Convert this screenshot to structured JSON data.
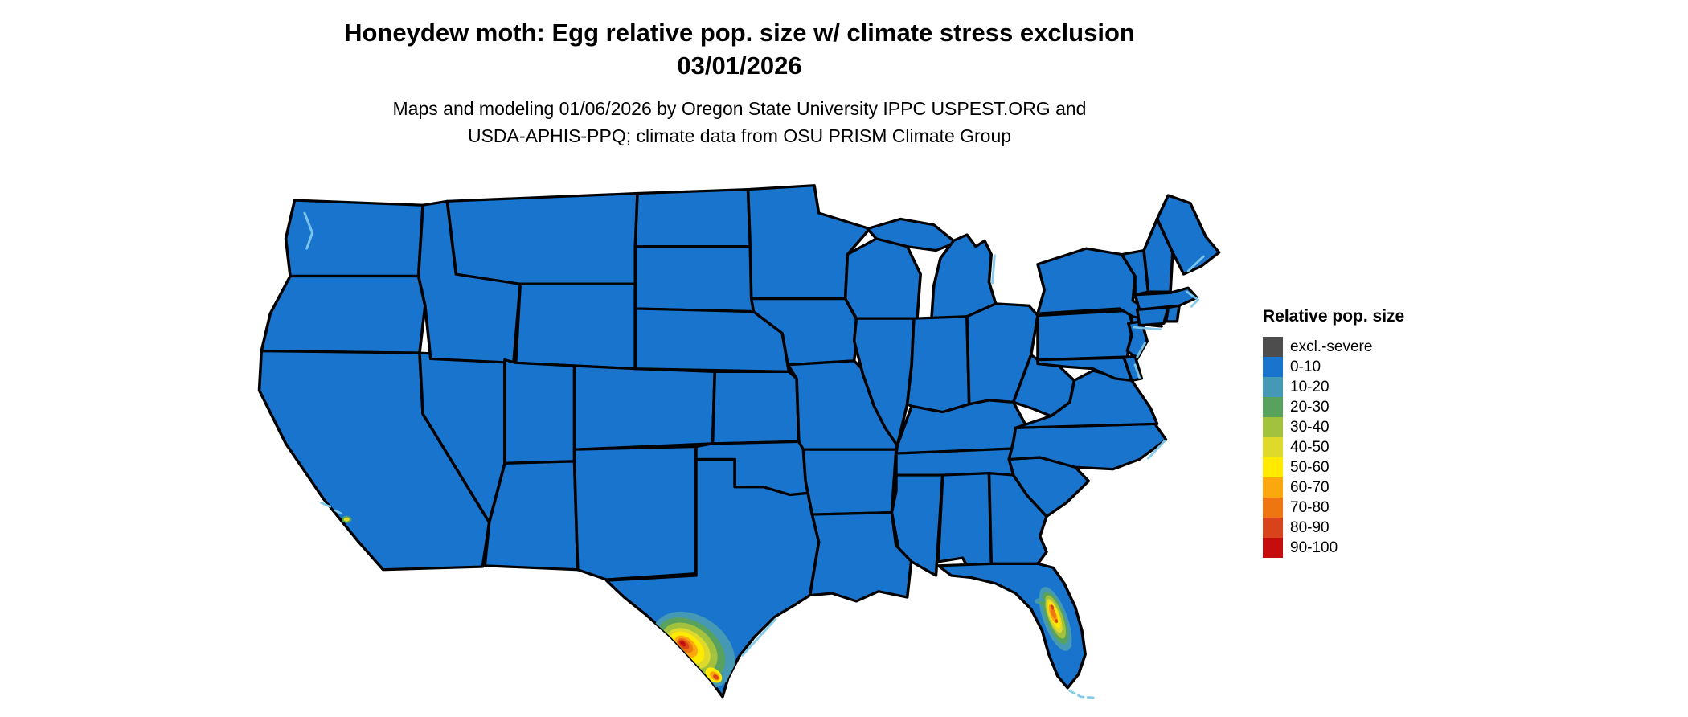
{
  "title": {
    "line1": "Honeydew moth: Egg relative pop. size w/ climate stress exclusion",
    "line2": "03/01/2026"
  },
  "subtitle": {
    "line1": "Maps and modeling 01/06/2026 by Oregon State University IPPC USPEST.ORG and",
    "line2": "USDA-APHIS-PPQ; climate data from OSU PRISM Climate Group"
  },
  "legend": {
    "title": "Relative pop. size",
    "items": [
      {
        "label": "excl.-severe",
        "color": "#4d4d4d"
      },
      {
        "label": "0-10",
        "color": "#1874cd"
      },
      {
        "label": "10-20",
        "color": "#4599b4"
      },
      {
        "label": "20-30",
        "color": "#58a25e"
      },
      {
        "label": "30-40",
        "color": "#a2c23e"
      },
      {
        "label": "40-50",
        "color": "#dfd92b"
      },
      {
        "label": "50-60",
        "color": "#ffea00"
      },
      {
        "label": "60-70",
        "color": "#fba80f"
      },
      {
        "label": "70-80",
        "color": "#ee7512"
      },
      {
        "label": "80-90",
        "color": "#d8431b"
      },
      {
        "label": "90-100",
        "color": "#c50d0d"
      }
    ]
  },
  "map": {
    "region": "conterminous United States",
    "base_fill": "#1874cd",
    "border_color": "#000000",
    "coast_fringe": "#7fc8e8",
    "background": "#ffffff",
    "hotspots": [
      {
        "region": "south-texas-rio-grande-valley",
        "levels": "10-100"
      },
      {
        "region": "central-florida-ridge",
        "levels": "10-90"
      },
      {
        "region": "southern-california-coast",
        "levels": "20-50"
      }
    ]
  }
}
